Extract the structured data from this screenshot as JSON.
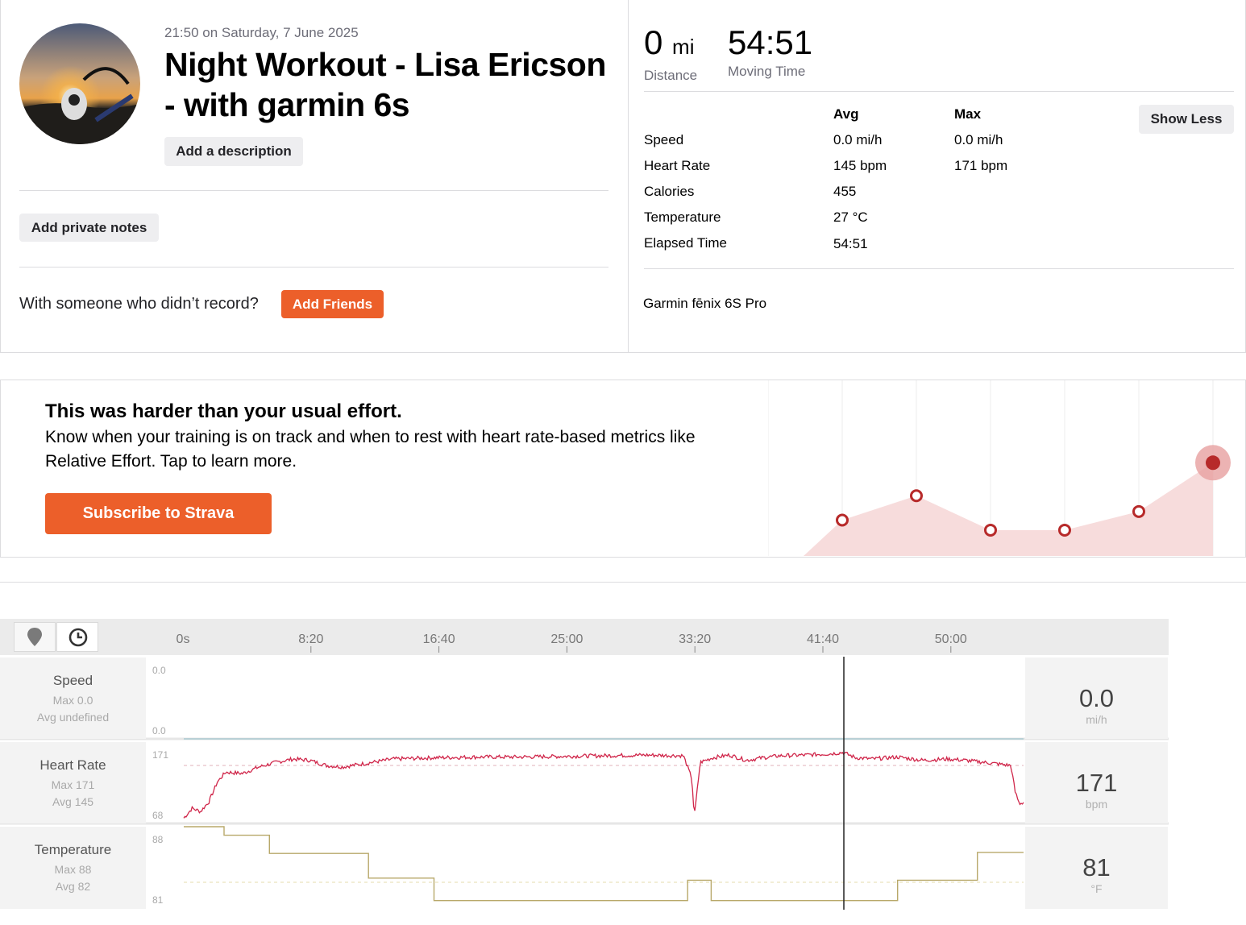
{
  "activity": {
    "datetime": "21:50 on Saturday, 7 June 2025",
    "title": "Night Workout - Lisa Ericson - with garmin 6s",
    "add_description_label": "Add a description",
    "add_private_notes_label": "Add private notes",
    "friends_question": "With someone who didn’t record?",
    "add_friends_label": "Add Friends"
  },
  "summary": {
    "distance_value": "0",
    "distance_unit": "mi",
    "distance_label": "Distance",
    "moving_time_value": "54:51",
    "moving_time_label": "Moving Time"
  },
  "stats_table": {
    "avg_header": "Avg",
    "max_header": "Max",
    "show_less_label": "Show Less",
    "rows": [
      {
        "label": "Speed",
        "avg": "0.0 mi/h",
        "max": "0.0 mi/h"
      },
      {
        "label": "Heart Rate",
        "avg": "145 bpm",
        "max": "171 bpm"
      },
      {
        "label": "Calories",
        "avg": "455",
        "max": ""
      },
      {
        "label": "Temperature",
        "avg": "27 °C",
        "max": ""
      },
      {
        "label": "Elapsed Time",
        "avg": "54:51",
        "max": ""
      }
    ]
  },
  "device": "Garmin fēnix 6S Pro",
  "effort": {
    "heading": "This was harder than your usual effort.",
    "body": "Know when your training is on track and when to rest with heart rate-based metrics like Relative Effort. Tap to learn more.",
    "subscribe_label": "Subscribe to Strava",
    "trend_points": [
      0.25,
      0.42,
      0.18,
      0.18,
      0.31,
      0.65
    ]
  },
  "analysis": {
    "view_buttons": [
      "map-pin-icon",
      "clock-icon"
    ],
    "time_ticks": [
      "0s",
      "8:20",
      "16:40",
      "25:00",
      "33:20",
      "41:40",
      "50:00"
    ],
    "cursor_time_fraction": 0.786,
    "rows": [
      {
        "name": "Speed",
        "max": "Max 0.0",
        "avg": "Avg undefined",
        "value": "0.0",
        "unit": "mi/h",
        "ymax": "0.0",
        "ymin": "0.0"
      },
      {
        "name": "Heart Rate",
        "max": "Max 171",
        "avg": "Avg 145",
        "value": "171",
        "unit": "bpm",
        "ymax": "171",
        "ymin": "68"
      },
      {
        "name": "Temperature",
        "max": "Max 88",
        "avg": "Avg 82",
        "value": "81",
        "unit": "°F",
        "ymax": "88",
        "ymin": "81"
      }
    ]
  },
  "colors": {
    "accent": "#ec5f2a",
    "heart_rate_line": "#d0264a",
    "temperature_line": "#b8a86a",
    "speed_line": "#a8c8d0",
    "effort_fill": "#f7dcdc",
    "effort_point": "#b72a2a"
  }
}
